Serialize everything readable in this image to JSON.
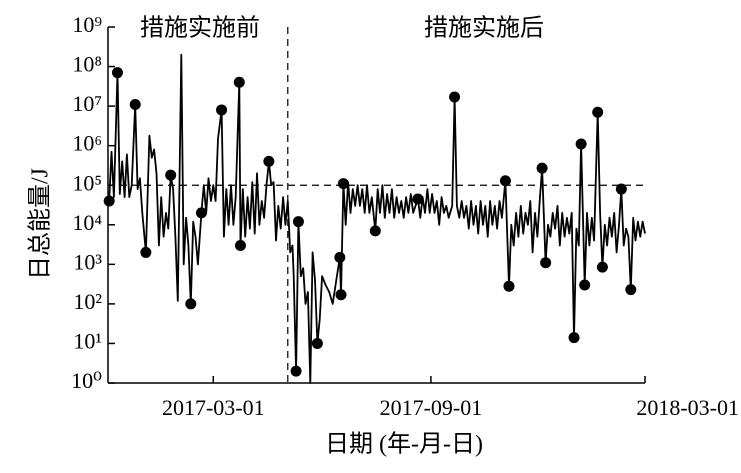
{
  "chart_data": {
    "type": "line",
    "x_label": "日期 (年-月-日)",
    "y_label": "日总能量/J",
    "annotations": [
      "措施实施前",
      "措施实施后"
    ],
    "log_y": true,
    "color": "#000000",
    "xlim": [
      "2016-12-02",
      "2018-03-01"
    ],
    "xticks": [
      "2017-03-01",
      "2017-09-01",
      "2018-03-01"
    ],
    "ylim": [
      1,
      1000000000
    ],
    "yticks": [
      {
        "value": 1,
        "label": "10⁰"
      },
      {
        "value": 10,
        "label": "10¹"
      },
      {
        "value": 100,
        "label": "10²"
      },
      {
        "value": 1000,
        "label": "10³"
      },
      {
        "value": 10000,
        "label": "10⁴"
      },
      {
        "value": 100000,
        "label": "10⁵"
      },
      {
        "value": 1000000,
        "label": "10⁶"
      },
      {
        "value": 10000000,
        "label": "10⁷"
      },
      {
        "value": 100000000,
        "label": "10⁸"
      },
      {
        "value": 1000000000,
        "label": "10⁹"
      }
    ],
    "threshold": 100000,
    "divider": "2017-05-03",
    "x": [
      "2016-12-03",
      "2016-12-05",
      "2016-12-07",
      "2016-12-10",
      "2016-12-12",
      "2016-12-14",
      "2016-12-16",
      "2016-12-18",
      "2016-12-20",
      "2016-12-22",
      "2016-12-25",
      "2016-12-27",
      "2016-12-29",
      "2016-12-31",
      "2017-01-03",
      "2017-01-06",
      "2017-01-08",
      "2017-01-10",
      "2017-01-12",
      "2017-01-14",
      "2017-01-16",
      "2017-01-18",
      "2017-01-20",
      "2017-01-22",
      "2017-01-24",
      "2017-01-26",
      "2017-01-28",
      "2017-01-30",
      "2017-02-02",
      "2017-02-04",
      "2017-02-06",
      "2017-02-08",
      "2017-02-10",
      "2017-02-12",
      "2017-02-14",
      "2017-02-16",
      "2017-02-19",
      "2017-02-21",
      "2017-02-23",
      "2017-02-25",
      "2017-02-27",
      "2017-03-01",
      "2017-03-03",
      "2017-03-05",
      "2017-03-08",
      "2017-03-10",
      "2017-03-12",
      "2017-03-14",
      "2017-03-16",
      "2017-03-18",
      "2017-03-20",
      "2017-03-23",
      "2017-03-24",
      "2017-03-26",
      "2017-03-28",
      "2017-03-30",
      "2017-04-01",
      "2017-04-03",
      "2017-04-05",
      "2017-04-07",
      "2017-04-09",
      "2017-04-11",
      "2017-04-13",
      "2017-04-15",
      "2017-04-17",
      "2017-04-19",
      "2017-04-21",
      "2017-04-23",
      "2017-04-25",
      "2017-04-27",
      "2017-04-29",
      "2017-05-01",
      "2017-05-03",
      "2017-05-05",
      "2017-05-07",
      "2017-05-08",
      "2017-05-10",
      "2017-05-12",
      "2017-05-14",
      "2017-05-16",
      "2017-05-18",
      "2017-05-20",
      "2017-05-22",
      "2017-05-24",
      "2017-05-26",
      "2017-05-28",
      "2017-05-30",
      "2017-06-01",
      "2017-06-04",
      "2017-06-07",
      "2017-06-10",
      "2017-06-13",
      "2017-06-16",
      "2017-06-17",
      "2017-06-19",
      "2017-06-21",
      "2017-06-23",
      "2017-06-25",
      "2017-06-27",
      "2017-06-29",
      "2017-07-01",
      "2017-07-03",
      "2017-07-05",
      "2017-07-07",
      "2017-07-09",
      "2017-07-11",
      "2017-07-13",
      "2017-07-16",
      "2017-07-18",
      "2017-07-20",
      "2017-07-22",
      "2017-07-24",
      "2017-07-26",
      "2017-07-28",
      "2017-07-30",
      "2017-08-01",
      "2017-08-03",
      "2017-08-05",
      "2017-08-07",
      "2017-08-09",
      "2017-08-11",
      "2017-08-13",
      "2017-08-15",
      "2017-08-17",
      "2017-08-19",
      "2017-08-21",
      "2017-08-23",
      "2017-08-25",
      "2017-08-27",
      "2017-08-29",
      "2017-08-31",
      "2017-09-02",
      "2017-09-04",
      "2017-09-06",
      "2017-09-08",
      "2017-09-10",
      "2017-09-12",
      "2017-09-14",
      "2017-09-16",
      "2017-09-19",
      "2017-09-21",
      "2017-09-23",
      "2017-09-25",
      "2017-09-27",
      "2017-09-29",
      "2017-10-01",
      "2017-10-03",
      "2017-10-05",
      "2017-10-07",
      "2017-10-09",
      "2017-10-11",
      "2017-10-13",
      "2017-10-15",
      "2017-10-17",
      "2017-10-19",
      "2017-10-21",
      "2017-10-23",
      "2017-10-25",
      "2017-10-27",
      "2017-10-29",
      "2017-10-31",
      "2017-11-03",
      "2017-11-06",
      "2017-11-08",
      "2017-11-10",
      "2017-11-12",
      "2017-11-14",
      "2017-11-16",
      "2017-11-18",
      "2017-11-20",
      "2017-11-22",
      "2017-11-24",
      "2017-11-26",
      "2017-11-28",
      "2017-11-30",
      "2017-12-02",
      "2017-12-04",
      "2017-12-07",
      "2017-12-09",
      "2017-12-11",
      "2017-12-13",
      "2017-12-15",
      "2017-12-17",
      "2017-12-19",
      "2017-12-21",
      "2017-12-23",
      "2017-12-25",
      "2017-12-27",
      "2017-12-29",
      "2017-12-31",
      "2018-01-02",
      "2018-01-04",
      "2018-01-06",
      "2018-01-09",
      "2018-01-11",
      "2018-01-13",
      "2018-01-15",
      "2018-01-17",
      "2018-01-20",
      "2018-01-22",
      "2018-01-24",
      "2018-01-26",
      "2018-01-28",
      "2018-01-30",
      "2018-02-01",
      "2018-02-03",
      "2018-02-05",
      "2018-02-07",
      "2018-02-09",
      "2018-02-11",
      "2018-02-13",
      "2018-02-15",
      "2018-02-17",
      "2018-02-19",
      "2018-02-21",
      "2018-02-23",
      "2018-02-25",
      "2018-02-27",
      "2018-03-01"
    ],
    "values": [
      40000,
      700000,
      50000,
      70000000,
      60000,
      400000,
      50000,
      600000,
      50000,
      100000,
      11000000,
      80000,
      150000,
      20000,
      2000,
      1800000,
      500000,
      800000,
      200000,
      3000,
      50000,
      5000,
      20000,
      8000,
      180000,
      80000,
      5000,
      120,
      200000000,
      1000,
      15000,
      3000,
      100,
      12000,
      5000,
      1000,
      20000,
      100000,
      20000,
      150000,
      40000,
      100000,
      40000,
      1500000,
      8000000,
      5000,
      80000,
      10000,
      100000,
      10000,
      50000,
      40000000,
      3000,
      80000,
      5000,
      50000,
      8000,
      120000,
      6000,
      200000,
      10000,
      40000,
      15000,
      100000,
      400000,
      100000,
      120000,
      4000,
      30000,
      8000,
      50000,
      10000,
      40000,
      2000,
      3000,
      500,
      2,
      12000,
      500,
      800,
      100,
      200,
      1,
      2000,
      400,
      10,
      40,
      500,
      300,
      200,
      100,
      400,
      1500,
      170,
      110000,
      10000,
      120000,
      20000,
      80000,
      30000,
      100000,
      30000,
      80000,
      20000,
      100000,
      20000,
      50000,
      7000,
      80000,
      20000,
      100000,
      15000,
      60000,
      20000,
      80000,
      15000,
      50000,
      20000,
      40000,
      15000,
      50000,
      20000,
      60000,
      20000,
      30000,
      45000,
      15000,
      50000,
      20000,
      80000,
      20000,
      60000,
      20000,
      40000,
      10000,
      50000,
      20000,
      30000,
      15000,
      30000,
      17000000,
      30000,
      15000,
      40000,
      15000,
      30000,
      8000,
      40000,
      10000,
      30000,
      6000,
      40000,
      10000,
      30000,
      5000,
      40000,
      10000,
      30000,
      8000,
      40000,
      15000,
      130000,
      280,
      10000,
      3000,
      20000,
      5000,
      30000,
      6000,
      20000,
      10000,
      40000,
      2000,
      20000,
      5000,
      40000,
      270000,
      1100,
      10000,
      5000,
      20000,
      8000,
      30000,
      3000,
      20000,
      5000,
      15000,
      6000,
      20000,
      14,
      8000,
      3000,
      1100000,
      300,
      20000,
      3000,
      15000,
      4000,
      7000000,
      20000,
      850,
      10000,
      3000,
      15000,
      5000,
      20000,
      2000,
      10000,
      80000,
      3000,
      8000,
      5000,
      230,
      15000,
      4000,
      12000,
      5000,
      12000,
      6000
    ],
    "markers": {
      "x": [
        "2016-12-03",
        "2016-12-10",
        "2016-12-25",
        "2017-01-03",
        "2017-01-24",
        "2017-02-10",
        "2017-02-19",
        "2017-03-08",
        "2017-03-23",
        "2017-03-24",
        "2017-04-17",
        "2017-05-10",
        "2017-05-12",
        "2017-05-28",
        "2017-06-16",
        "2017-06-17",
        "2017-06-19",
        "2017-07-16",
        "2017-08-21",
        "2017-09-21",
        "2017-11-03",
        "2017-11-06",
        "2017-12-04",
        "2017-12-07",
        "2017-12-31",
        "2018-01-06",
        "2018-01-09",
        "2018-01-20",
        "2018-01-24",
        "2018-02-09",
        "2018-02-17"
      ],
      "values": [
        40000,
        70000000,
        11000000,
        2000,
        180000,
        100,
        20000,
        8000000,
        40000000,
        3000,
        400000,
        2,
        12000,
        10,
        1500,
        170,
        110000,
        7000,
        45000,
        17000000,
        130000,
        280,
        270000,
        1100,
        14,
        1100000,
        300,
        7000000,
        850,
        80000,
        230
      ]
    }
  }
}
